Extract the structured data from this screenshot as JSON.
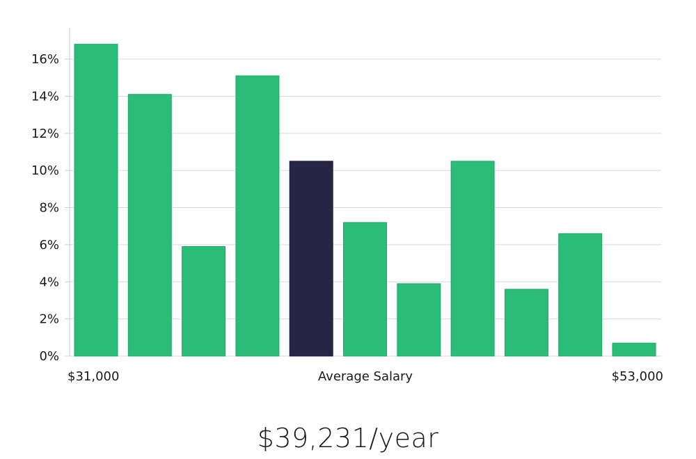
{
  "chart_data": {
    "type": "bar",
    "xlabel": "Average Salary",
    "x_min_label": "$31,000",
    "x_max_label": "$53,000",
    "y_ticks": [
      "0%",
      "2%",
      "4%",
      "6%",
      "8%",
      "10%",
      "12%",
      "14%",
      "16%"
    ],
    "ylim": [
      0,
      16
    ],
    "values": [
      16.8,
      14.1,
      5.9,
      15.1,
      10.5,
      7.2,
      3.9,
      10.5,
      3.6,
      6.6,
      0.7
    ],
    "highlight_index": 4,
    "grid": true,
    "colors": {
      "bar": "#2bbd78",
      "highlight": "#272445",
      "grid": "#d9d9d9",
      "axis": "#cccccc"
    }
  },
  "summary": {
    "salary": "$39,231/year"
  }
}
